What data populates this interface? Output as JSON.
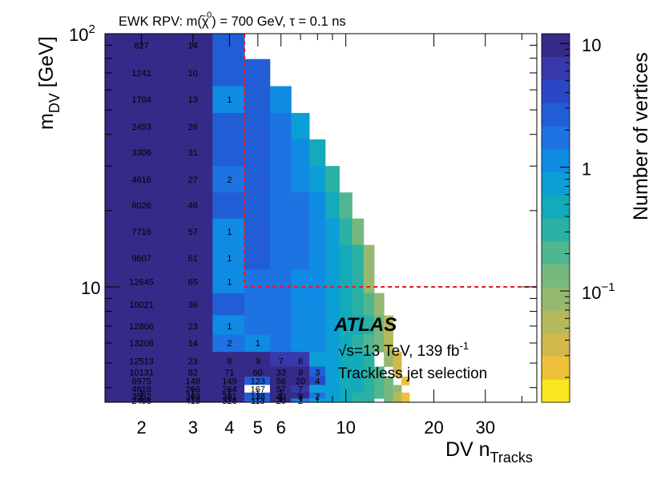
{
  "chart_data": {
    "type": "heatmap",
    "title": "EWK RPV: m(χ̃⁰) = 700 GeV, τ = 0.1 ns",
    "title_parts": {
      "prefix": "EWK RPV: m(",
      "chi": "χ",
      "tilde": "~",
      "sup": "0",
      "suffix": ") = 700 GeV, τ = 0.1 ns"
    },
    "xlabel": {
      "main": "DV n",
      "sub": "Tracks"
    },
    "ylabel": {
      "main": "m",
      "sub": "DV",
      "suffix": " [GeV]"
    },
    "zlabel": "Number of vertices",
    "x_scale": "log",
    "y_scale": "log",
    "z_scale": "log",
    "xlim": [
      1.5,
      45
    ],
    "ylim": [
      3.5,
      100
    ],
    "zlim": [
      0.0126,
      12
    ],
    "x_ticks": [
      {
        "value": 2,
        "label": "2"
      },
      {
        "value": 3,
        "label": "3"
      },
      {
        "value": 4,
        "label": "4"
      },
      {
        "value": 5,
        "label": "5"
      },
      {
        "value": 6,
        "label": "6"
      },
      {
        "value": 10,
        "label": "10"
      },
      {
        "value": 20,
        "label": "20"
      },
      {
        "value": 30,
        "label": "30"
      }
    ],
    "y_ticks": [
      {
        "value": 100,
        "label": "10",
        "sup": "2"
      },
      {
        "value": 10,
        "label": "10",
        "sup": ""
      }
    ],
    "z_ticks": [
      {
        "value": 10,
        "label": "10",
        "sup": ""
      },
      {
        "value": 1,
        "label": "1",
        "sup": ""
      },
      {
        "value": 0.1,
        "label": "10",
        "sup": "−1"
      }
    ],
    "y_rows": [
      90,
      70,
      55,
      43,
      34,
      26.5,
      21,
      16.5,
      13,
      10.5,
      8.5,
      7,
      6,
      5.1,
      4.6,
      4.25,
      3.95,
      3.7,
      3.55
    ],
    "counts": [
      {
        "row": 0,
        "values": [
          827,
          14
        ]
      },
      {
        "row": 1,
        "values": [
          1241,
          10
        ]
      },
      {
        "row": 2,
        "values": [
          1704,
          13,
          1
        ]
      },
      {
        "row": 3,
        "values": [
          2453,
          26
        ]
      },
      {
        "row": 4,
        "values": [
          3306,
          31
        ]
      },
      {
        "row": 5,
        "values": [
          4616,
          27,
          2
        ]
      },
      {
        "row": 6,
        "values": [
          6026,
          46
        ]
      },
      {
        "row": 7,
        "values": [
          7716,
          57,
          1
        ]
      },
      {
        "row": 8,
        "values": [
          9607,
          61,
          1
        ]
      },
      {
        "row": 9,
        "values": [
          12645,
          65,
          1
        ]
      },
      {
        "row": 10,
        "values": [
          10021,
          36
        ]
      },
      {
        "row": 11,
        "values": [
          12806,
          23,
          1
        ]
      },
      {
        "row": 12,
        "values": [
          13208,
          14,
          2,
          1
        ]
      },
      {
        "row": 13,
        "values": [
          12513,
          23,
          8,
          9,
          7,
          6
        ]
      },
      {
        "row": 14,
        "values": [
          10131,
          82,
          71,
          60,
          33,
          9,
          3
        ]
      },
      {
        "row": 15,
        "values": [
          6975,
          148,
          149,
          123,
          56,
          20,
          4
        ]
      },
      {
        "row": 16,
        "values": [
          4818,
          266,
          264,
          167,
          57,
          7
        ]
      },
      {
        "row": 17,
        "values": [
          3552,
          369,
          301,
          138,
          40,
          9,
          2
        ]
      },
      {
        "row": 18,
        "values": [
          2498,
          419,
          328,
          113,
          20,
          2
        ]
      }
    ],
    "signal_region": {
      "min_ntracks": 5,
      "min_mass_gev": 10
    },
    "grid": false,
    "legend": "none",
    "annotations": {
      "experiment": "ATLAS",
      "energy_prefix": "√s=13 TeV, 139 fb",
      "energy_sup": "-1",
      "selection": "Trackless jet selection"
    },
    "colors": {
      "signal_region_line": "#e8192c",
      "colormap": [
        "#f9e721",
        "#eec039",
        "#d2b74b",
        "#b6b85c",
        "#95b970",
        "#76b87e",
        "#50b692",
        "#2ab1a3",
        "#13aab9",
        "#0c9ed6",
        "#0f8be3",
        "#1e73e3",
        "#215ed6",
        "#2a48c6",
        "#3838ad",
        "#352a87"
      ]
    }
  }
}
